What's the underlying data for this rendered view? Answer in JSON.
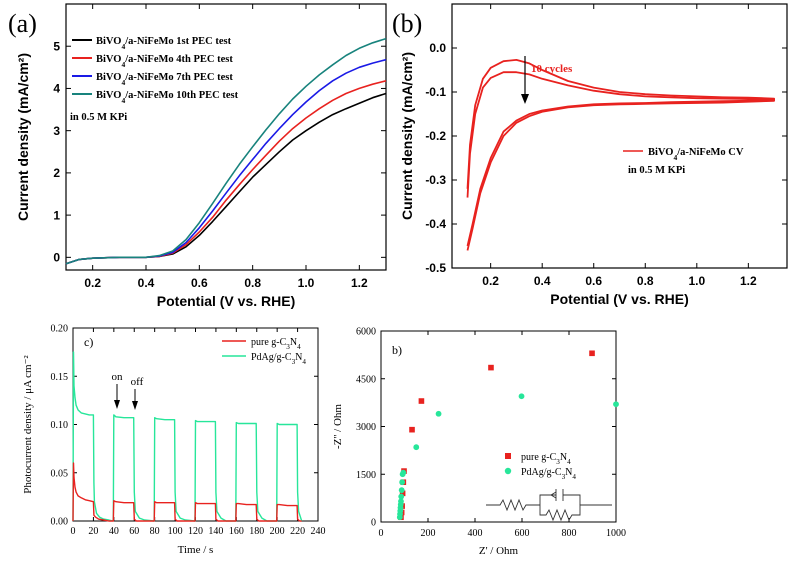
{
  "colors": {
    "black": "#000000",
    "red": "#e8221f",
    "blue": "#1a1ae6",
    "teal": "#18837d",
    "green": "#27e69a",
    "gray": "#888888"
  },
  "chart_data": [
    {
      "panel": "(a)",
      "type": "line",
      "xlabel": "Potential (V vs. RHE)",
      "ylabel": "Current density (mA/cm²)",
      "xlim": [
        0.1,
        1.3
      ],
      "ylim": [
        -0.3,
        6
      ],
      "xticks": [
        "0.2",
        "0.4",
        "0.6",
        "0.8",
        "1.0",
        "1.2"
      ],
      "xtick_values": [
        0.2,
        0.4,
        0.6,
        0.8,
        1.0,
        1.2
      ],
      "yticks": [
        "0",
        "1",
        "2",
        "3",
        "4",
        "5"
      ],
      "ytick_values": [
        0,
        1,
        2,
        3,
        4,
        5
      ],
      "legend_position": "top-left",
      "note": "in 0.5 M KPi",
      "series": [
        {
          "name": "BiVO4/a-NiFeMo 1st PEC test",
          "color": "#000000",
          "x": [
            0.1,
            0.15,
            0.2,
            0.3,
            0.4,
            0.45,
            0.5,
            0.55,
            0.6,
            0.65,
            0.7,
            0.75,
            0.8,
            0.85,
            0.9,
            0.95,
            1.0,
            1.05,
            1.1,
            1.15,
            1.2,
            1.25,
            1.3
          ],
          "y": [
            -0.15,
            -0.05,
            -0.02,
            0.0,
            0.0,
            0.02,
            0.08,
            0.25,
            0.52,
            0.85,
            1.2,
            1.55,
            1.9,
            2.2,
            2.5,
            2.78,
            3.0,
            3.2,
            3.38,
            3.52,
            3.65,
            3.78,
            3.88
          ]
        },
        {
          "name": "BiVO4/a-NiFeMo 4th PEC test",
          "color": "#e8221f",
          "x": [
            0.1,
            0.15,
            0.2,
            0.3,
            0.4,
            0.45,
            0.5,
            0.55,
            0.6,
            0.65,
            0.7,
            0.75,
            0.8,
            0.85,
            0.9,
            0.95,
            1.0,
            1.05,
            1.1,
            1.15,
            1.2,
            1.25,
            1.3
          ],
          "y": [
            -0.15,
            -0.05,
            -0.02,
            0.0,
            0.0,
            0.02,
            0.1,
            0.3,
            0.6,
            0.95,
            1.35,
            1.72,
            2.08,
            2.42,
            2.75,
            3.05,
            3.3,
            3.52,
            3.72,
            3.88,
            4.0,
            4.1,
            4.18
          ]
        },
        {
          "name": "BiVO4/a-NiFeMo 7th PEC test",
          "color": "#1a1ae6",
          "x": [
            0.1,
            0.15,
            0.2,
            0.3,
            0.4,
            0.45,
            0.5,
            0.55,
            0.6,
            0.65,
            0.7,
            0.75,
            0.8,
            0.85,
            0.9,
            0.95,
            1.0,
            1.05,
            1.1,
            1.15,
            1.2,
            1.25,
            1.3
          ],
          "y": [
            -0.15,
            -0.05,
            -0.02,
            0.0,
            0.0,
            0.03,
            0.12,
            0.35,
            0.7,
            1.1,
            1.52,
            1.93,
            2.32,
            2.7,
            3.05,
            3.38,
            3.68,
            3.95,
            4.18,
            4.36,
            4.5,
            4.6,
            4.68
          ]
        },
        {
          "name": "BiVO4/a-NiFeMo 10th PEC test",
          "color": "#18837d",
          "x": [
            0.1,
            0.15,
            0.2,
            0.3,
            0.4,
            0.45,
            0.5,
            0.55,
            0.6,
            0.65,
            0.7,
            0.75,
            0.8,
            0.85,
            0.9,
            0.95,
            1.0,
            1.05,
            1.1,
            1.15,
            1.2,
            1.25,
            1.3
          ],
          "y": [
            -0.15,
            -0.05,
            -0.02,
            0.0,
            0.0,
            0.04,
            0.15,
            0.42,
            0.82,
            1.28,
            1.75,
            2.2,
            2.62,
            3.02,
            3.4,
            3.75,
            4.05,
            4.32,
            4.56,
            4.78,
            4.95,
            5.08,
            5.18
          ]
        }
      ]
    },
    {
      "panel": "(b)",
      "type": "line",
      "xlabel": "Potential (V vs. RHE)",
      "ylabel": "Current density (mA/cm²)",
      "xlim": [
        0.05,
        1.35
      ],
      "ylim": [
        -0.5,
        0.1
      ],
      "xticks": [
        "0.2",
        "0.4",
        "0.6",
        "0.8",
        "1.0",
        "1.2"
      ],
      "xtick_values": [
        0.2,
        0.4,
        0.6,
        0.8,
        1.0,
        1.2
      ],
      "yticks": [
        "0.0",
        "-0.1",
        "-0.2",
        "-0.3",
        "-0.4",
        "-0.5"
      ],
      "ytick_values": [
        0.0,
        -0.1,
        -0.2,
        -0.3,
        -0.4,
        -0.5
      ],
      "annotation": "10 cycles",
      "legend_position": "right",
      "note": "in 0.5 M KPi",
      "series": [
        {
          "name": "BiVO4/a-NiFeMo CV",
          "color": "#e8221f",
          "x": [
            0.11,
            0.12,
            0.14,
            0.17,
            0.2,
            0.25,
            0.3,
            0.35,
            0.4,
            0.5,
            0.6,
            0.7,
            0.8,
            0.9,
            1.0,
            1.1,
            1.2,
            1.3,
            1.3,
            1.2,
            1.1,
            1.0,
            0.9,
            0.8,
            0.7,
            0.6,
            0.5,
            0.4,
            0.35,
            0.3,
            0.25,
            0.2,
            0.16,
            0.13,
            0.11
          ],
          "y": [
            -0.32,
            -0.22,
            -0.13,
            -0.07,
            -0.045,
            -0.03,
            -0.027,
            -0.035,
            -0.05,
            -0.075,
            -0.09,
            -0.1,
            -0.105,
            -0.108,
            -0.11,
            -0.112,
            -0.113,
            -0.115,
            -0.12,
            -0.122,
            -0.124,
            -0.125,
            -0.126,
            -0.127,
            -0.128,
            -0.13,
            -0.135,
            -0.145,
            -0.155,
            -0.17,
            -0.2,
            -0.26,
            -0.33,
            -0.41,
            -0.46
          ]
        },
        {
          "x": [
            0.11,
            0.12,
            0.14,
            0.17,
            0.2,
            0.25,
            0.3,
            0.35,
            0.4,
            0.5,
            0.6,
            0.7,
            0.8,
            0.9,
            1.0,
            1.1,
            1.2,
            1.3,
            1.3,
            1.2,
            1.1,
            1.0,
            0.9,
            0.8,
            0.7,
            0.6,
            0.5,
            0.4,
            0.35,
            0.3,
            0.25,
            0.2,
            0.16,
            0.13,
            0.11
          ],
          "y": [
            -0.34,
            -0.24,
            -0.15,
            -0.09,
            -0.068,
            -0.055,
            -0.055,
            -0.06,
            -0.07,
            -0.085,
            -0.097,
            -0.105,
            -0.11,
            -0.112,
            -0.114,
            -0.115,
            -0.116,
            -0.118,
            -0.118,
            -0.12,
            -0.121,
            -0.122,
            -0.123,
            -0.125,
            -0.126,
            -0.128,
            -0.133,
            -0.142,
            -0.15,
            -0.165,
            -0.19,
            -0.25,
            -0.32,
            -0.4,
            -0.45
          ]
        }
      ]
    },
    {
      "panel": "c)",
      "type": "line",
      "xlabel": "Time / s",
      "ylabel": "Photocurrent density / μA cm⁻²",
      "xlim": [
        0,
        240
      ],
      "ylim": [
        0,
        0.2
      ],
      "xticks": [
        "0",
        "20",
        "40",
        "60",
        "80",
        "100",
        "120",
        "140",
        "160",
        "180",
        "200",
        "220",
        "240"
      ],
      "xtick_values": [
        0,
        20,
        40,
        60,
        80,
        100,
        120,
        140,
        160,
        180,
        200,
        220,
        240
      ],
      "yticks": [
        "0.00",
        "0.05",
        "0.10",
        "0.15",
        "0.20"
      ],
      "ytick_values": [
        0,
        0.05,
        0.1,
        0.15,
        0.2
      ],
      "annotations": [
        "on",
        "off"
      ],
      "legend_position": "top-right",
      "series": [
        {
          "name": "pure g-C₃N₄",
          "color": "#e8221f",
          "x": [
            0,
            0.5,
            1,
            2,
            3,
            5,
            8,
            12,
            16,
            20,
            20.5,
            22,
            25,
            30,
            35,
            39.5,
            40,
            42,
            50,
            58,
            59.5,
            60,
            62,
            70,
            79.5,
            80,
            82,
            90,
            99.5,
            100,
            102,
            110,
            119.5,
            120,
            122,
            130,
            139.5,
            140,
            142,
            150,
            159.5,
            160,
            162,
            170,
            179.5,
            180,
            182,
            190,
            199.5,
            200,
            202,
            210,
            219.5,
            220,
            222,
            224
          ],
          "y": [
            0,
            0.06,
            0.045,
            0.035,
            0.03,
            0.026,
            0.024,
            0.022,
            0.021,
            0.02,
            0.006,
            0.004,
            0.002,
            0.001,
            0.0,
            0.0,
            0.021,
            0.02,
            0.019,
            0.019,
            0.019,
            0.002,
            0.0,
            0.0,
            0.0,
            0.02,
            0.019,
            0.019,
            0.019,
            0.002,
            0.0,
            0.0,
            0.0,
            0.019,
            0.018,
            0.018,
            0.018,
            0.002,
            0.0,
            0.0,
            0.0,
            0.018,
            0.018,
            0.017,
            0.017,
            0.002,
            0.0,
            0.0,
            0.0,
            0.017,
            0.017,
            0.016,
            0.016,
            0.002,
            0.0,
            0.0
          ]
        },
        {
          "name": "PdAg/g-C₃N₄",
          "color": "#27e69a",
          "x": [
            0,
            0.5,
            1,
            2,
            3,
            5,
            8,
            12,
            16,
            20,
            20.5,
            21,
            23,
            26,
            30,
            35,
            39.5,
            40,
            42,
            50,
            58,
            59.5,
            60,
            61,
            65,
            70,
            79.5,
            80,
            82,
            90,
            99.5,
            100,
            101,
            105,
            110,
            119.5,
            120,
            122,
            130,
            139.5,
            140,
            141,
            145,
            150,
            159.5,
            160,
            162,
            170,
            179.5,
            180,
            181,
            185,
            190,
            199.5,
            200,
            202,
            210,
            219.5,
            220,
            221,
            224
          ],
          "y": [
            0,
            0.175,
            0.14,
            0.128,
            0.12,
            0.115,
            0.112,
            0.111,
            0.11,
            0.11,
            0.04,
            0.02,
            0.008,
            0.004,
            0.002,
            0.001,
            0.0,
            0.11,
            0.108,
            0.107,
            0.107,
            0.107,
            0.03,
            0.01,
            0.003,
            0.001,
            0.0,
            0.107,
            0.106,
            0.105,
            0.105,
            0.03,
            0.01,
            0.003,
            0.001,
            0.0,
            0.104,
            0.103,
            0.103,
            0.103,
            0.03,
            0.01,
            0.003,
            0.0,
            0.0,
            0.102,
            0.101,
            0.101,
            0.101,
            0.03,
            0.01,
            0.003,
            0.0,
            0.0,
            0.101,
            0.1,
            0.1,
            0.1,
            0.03,
            0.01,
            0.0
          ]
        }
      ]
    },
    {
      "panel": "b)",
      "type": "scatter",
      "xlabel": "Z' / Ohm",
      "ylabel": "-Z'' / Ohm",
      "xlim": [
        0,
        1000
      ],
      "ylim": [
        0,
        6000
      ],
      "xticks": [
        "0",
        "200",
        "400",
        "600",
        "800",
        "1000"
      ],
      "xtick_values": [
        0,
        200,
        400,
        600,
        800,
        1000
      ],
      "yticks": [
        "0",
        "1500",
        "3000",
        "4500",
        "6000"
      ],
      "ytick_values": [
        0,
        1500,
        3000,
        4500,
        6000
      ],
      "legend_position": "bottom-right",
      "series": [
        {
          "name": "pure g-C₃N₄",
          "color": "#e8221f",
          "marker": "square",
          "x": [
            85,
            88,
            90,
            92,
            95,
            98,
            132,
            172,
            468,
            898
          ],
          "y": [
            150,
            300,
            500,
            900,
            1250,
            1600,
            2900,
            3800,
            4850,
            5300
          ]
        },
        {
          "name": "PdAg/g-C₃N₄",
          "color": "#27e69a",
          "marker": "circle",
          "x": [
            80,
            81,
            82,
            83,
            84,
            85,
            86,
            88,
            90,
            92,
            95,
            150,
            245,
            598,
            1000
          ],
          "y": [
            150,
            250,
            350,
            450,
            550,
            650,
            800,
            1000,
            1250,
            1500,
            1550,
            2350,
            3400,
            3950,
            3700
          ]
        }
      ]
    }
  ]
}
